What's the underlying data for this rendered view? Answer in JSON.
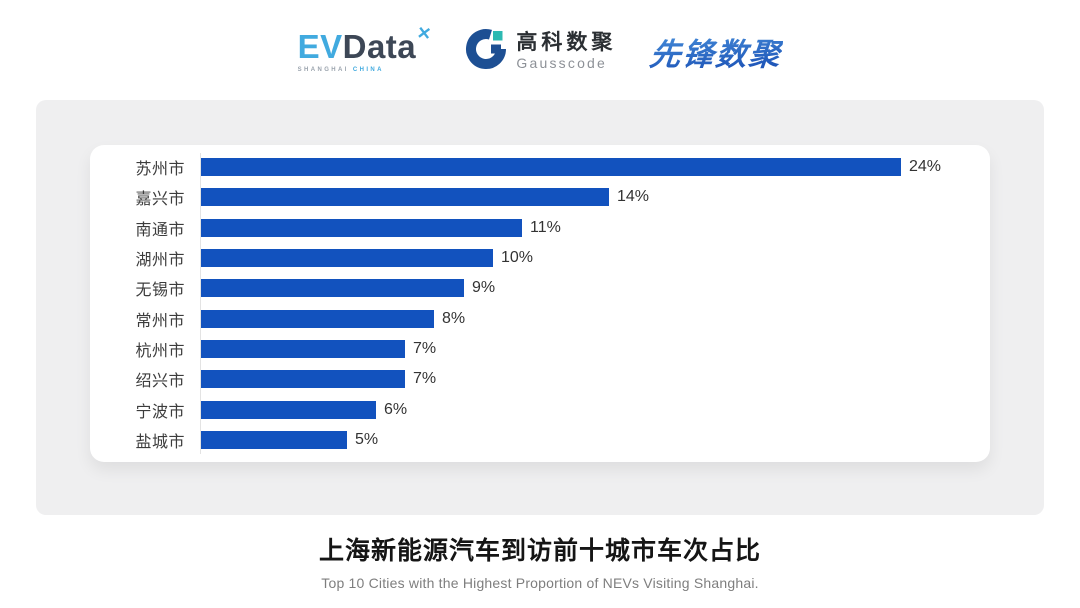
{
  "header": {
    "evdata_logo": {
      "part_blue": "EV",
      "part_dark": "Data",
      "mark_glyph": "✕",
      "sub_left": "SHANGHAI",
      "sub_right": "CHINA"
    },
    "gausscode_logo": {
      "cn": "高科数聚",
      "en": "Gausscode"
    },
    "pioneer_logo": {
      "text": "先锋数聚"
    }
  },
  "chart_data": {
    "type": "bar",
    "orientation": "horizontal",
    "categories": [
      "苏州市",
      "嘉兴市",
      "南通市",
      "湖州市",
      "无锡市",
      "常州市",
      "杭州市",
      "绍兴市",
      "宁波市",
      "盐城市"
    ],
    "values": [
      24,
      14,
      11,
      10,
      9,
      8,
      7,
      7,
      6,
      5
    ],
    "value_labels": [
      "24%",
      "14%",
      "11%",
      "10%",
      "9%",
      "8%",
      "7%",
      "7%",
      "6%",
      "5%"
    ],
    "title": "上海新能源汽车到访前十城市车次占比",
    "subtitle": "Top 10 Cities with the Highest Proportion of  NEVs Visiting Shanghai.",
    "xlim": [
      0,
      24
    ],
    "bar_color": "#1252be",
    "grid": false,
    "legend": false,
    "axis_line": true
  },
  "colors": {
    "bar_blue": "#1252be",
    "panel_gray": "#efeff0",
    "card_white": "#ffffff",
    "evdata_blue": "#41aadf",
    "evdata_dark": "#3d4756",
    "gauss_navy": "#1d4f93",
    "gauss_teal": "#2cb9b2",
    "pioneer_blue": "#2b6fd0",
    "axis_gray": "#e3e3e3",
    "label_dark": "#3c3c3c"
  }
}
